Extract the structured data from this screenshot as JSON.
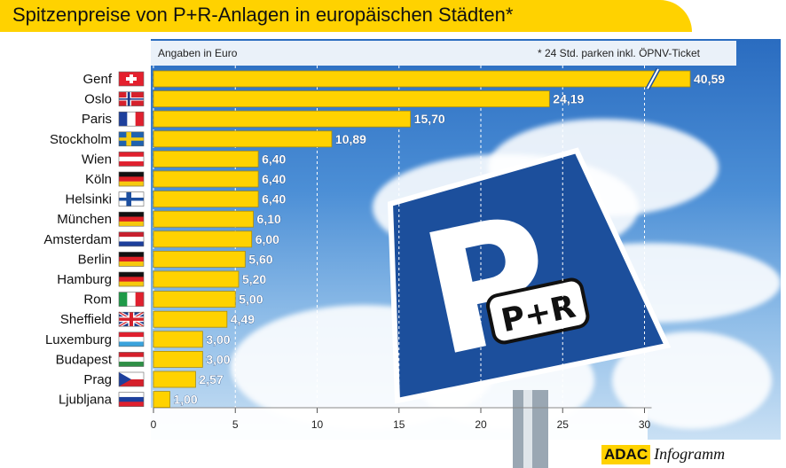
{
  "title": "Spitzenpreise von P+R-Anlagen in europäischen Städten*",
  "unit_label": "Angaben in Euro",
  "footnote": "* 24 Std. parken inkl. ÖPNV-Ticket",
  "sign": {
    "big_letter": "P",
    "plate_text": "P+R"
  },
  "footer": {
    "brand": "ADAC",
    "product": "Infogramm"
  },
  "colors": {
    "bar": "#ffd200",
    "title_band": "#ffd200",
    "sign_blue": "#1c4f9c",
    "value_label": "#ffffff"
  },
  "chart_data": {
    "type": "bar",
    "orientation": "horizontal",
    "categories": [
      "Genf",
      "Oslo",
      "Paris",
      "Stockholm",
      "Wien",
      "Köln",
      "Helsinki",
      "München",
      "Amsterdam",
      "Berlin",
      "Hamburg",
      "Rom",
      "Sheffield",
      "Luxemburg",
      "Budapest",
      "Prag",
      "Ljubljana"
    ],
    "flags": [
      "ch",
      "no",
      "fr",
      "se",
      "at",
      "de",
      "fi",
      "de",
      "nl",
      "de",
      "de",
      "it",
      "gb",
      "lu",
      "hu",
      "cz",
      "si"
    ],
    "values": [
      40.59,
      24.19,
      15.7,
      10.89,
      6.4,
      6.4,
      6.4,
      6.1,
      6.0,
      5.6,
      5.2,
      5.0,
      4.49,
      3.0,
      3.0,
      2.57,
      1.0
    ],
    "value_labels": [
      "40,59",
      "24,19",
      "15,70",
      "10,89",
      "6,40",
      "6,40",
      "6,40",
      "6,10",
      "6,00",
      "5,60",
      "5,20",
      "5,00",
      "4,49",
      "3,00",
      "3,00",
      "2,57",
      "1,00"
    ],
    "xticks": [
      "0",
      "5",
      "10",
      "15",
      "20",
      "25",
      "30"
    ],
    "xlim": [
      0,
      30
    ],
    "axis_break": "Genf bar truncated near 30",
    "grid": true
  }
}
